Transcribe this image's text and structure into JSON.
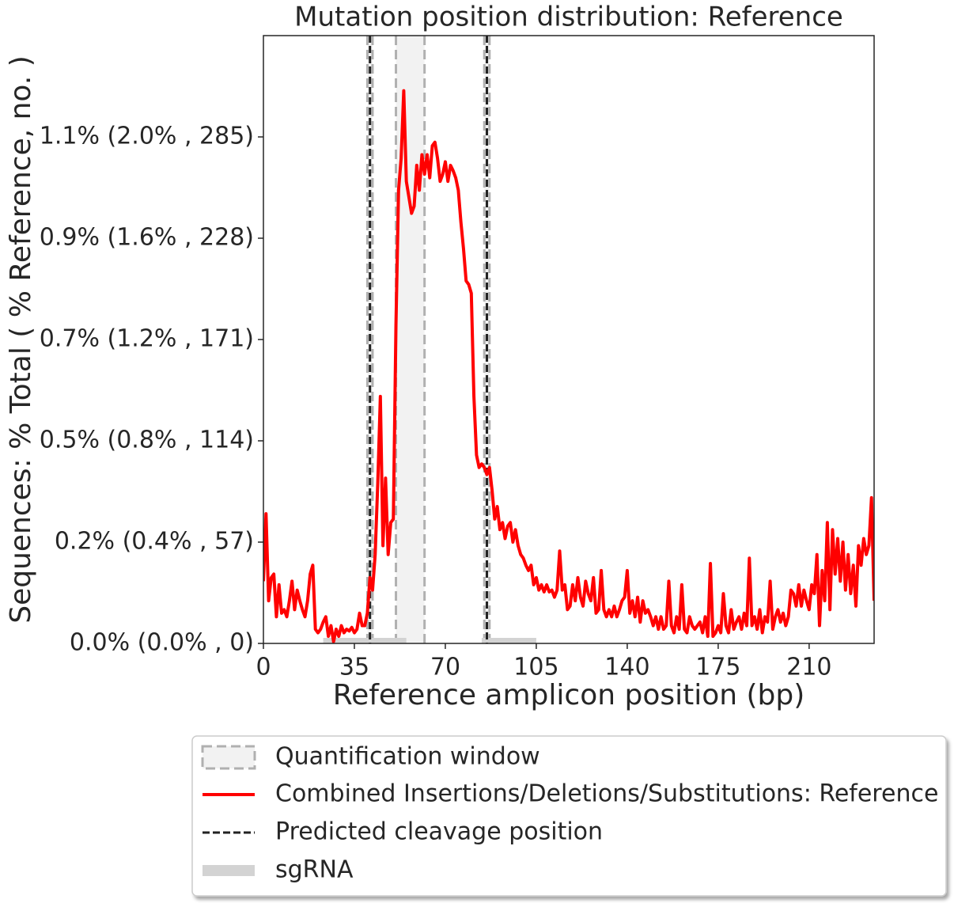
{
  "chart_data": {
    "type": "line",
    "title": "Mutation position distribution: Reference",
    "x_label": "Reference amplicon position (bp)",
    "y_label": "Sequences: % Total ( % Reference, no. )",
    "x": [
      0,
      1,
      2,
      3,
      4,
      5,
      6,
      7,
      8,
      9,
      10,
      11,
      12,
      13,
      14,
      15,
      16,
      17,
      18,
      19,
      20,
      21,
      22,
      23,
      24,
      25,
      26,
      27,
      28,
      29,
      30,
      31,
      32,
      33,
      34,
      35,
      36,
      37,
      38,
      39,
      40,
      41,
      42,
      43,
      44,
      45,
      46,
      47,
      48,
      49,
      50,
      51,
      52,
      53,
      54,
      55,
      56,
      57,
      58,
      59,
      60,
      61,
      62,
      63,
      64,
      65,
      66,
      67,
      68,
      69,
      70,
      71,
      72,
      73,
      74,
      75,
      76,
      77,
      78,
      79,
      80,
      81,
      82,
      83,
      84,
      85,
      86,
      87,
      88,
      89,
      90,
      91,
      92,
      93,
      94,
      95,
      96,
      97,
      98,
      99,
      100,
      101,
      102,
      103,
      104,
      105,
      106,
      107,
      108,
      109,
      110,
      111,
      112,
      113,
      114,
      115,
      116,
      117,
      118,
      119,
      120,
      121,
      122,
      123,
      124,
      125,
      126,
      127,
      128,
      129,
      130,
      131,
      132,
      133,
      134,
      135,
      136,
      137,
      138,
      139,
      140,
      141,
      142,
      143,
      144,
      145,
      146,
      147,
      148,
      149,
      150,
      151,
      152,
      153,
      154,
      155,
      156,
      157,
      158,
      159,
      160,
      161,
      162,
      163,
      164,
      165,
      166,
      167,
      168,
      169,
      170,
      171,
      172,
      173,
      174,
      175,
      176,
      177,
      178,
      179,
      180,
      181,
      182,
      183,
      184,
      185,
      186,
      187,
      188,
      189,
      190,
      191,
      192,
      193,
      194,
      195,
      196,
      197,
      198,
      199,
      200,
      201,
      202,
      203,
      204,
      205,
      206,
      207,
      208,
      209,
      210,
      211,
      212,
      213,
      214,
      215,
      216,
      217,
      218,
      219,
      220,
      221,
      222,
      223,
      224,
      225,
      226,
      227,
      228,
      229,
      230,
      231,
      232,
      233,
      234,
      235
    ],
    "series": [
      {
        "name": "Combined Insertions/Deletions/Substitutions: Reference",
        "color": "#ff0000",
        "values": [
          35,
          73,
          24,
          37,
          39,
          15,
          33,
          17,
          19,
          15,
          24,
          35,
          19,
          30,
          24,
          19,
          15,
          24,
          39,
          44,
          8,
          6,
          8,
          12,
          15,
          4,
          10,
          1,
          8,
          4,
          10,
          6,
          8,
          7,
          9,
          6,
          8,
          17,
          10,
          10,
          17,
          37,
          30,
          50,
          90,
          139,
          55,
          93,
          50,
          68,
          70,
          179,
          255,
          273,
          311,
          260,
          251,
          242,
          246,
          269,
          255,
          275,
          264,
          275,
          262,
          280,
          282,
          273,
          260,
          264,
          271,
          260,
          269,
          266,
          262,
          255,
          237,
          222,
          204,
          202,
          197,
          139,
          106,
          99,
          101,
          99,
          95,
          99,
          86,
          70,
          77,
          64,
          68,
          59,
          66,
          68,
          57,
          64,
          55,
          50,
          48,
          44,
          41,
          44,
          33,
          37,
          30,
          33,
          29,
          33,
          29,
          30,
          26,
          30,
          52,
          30,
          33,
          19,
          21,
          33,
          24,
          37,
          26,
          21,
          35,
          28,
          24,
          37,
          17,
          19,
          41,
          19,
          15,
          19,
          15,
          21,
          15,
          19,
          24,
          26,
          41,
          17,
          24,
          15,
          26,
          12,
          24,
          17,
          19,
          15,
          10,
          15,
          8,
          15,
          8,
          10,
          35,
          10,
          6,
          15,
          8,
          33,
          8,
          6,
          15,
          10,
          8,
          10,
          12,
          6,
          15,
          4,
          45,
          4,
          6,
          10,
          6,
          28,
          10,
          6,
          19,
          8,
          12,
          15,
          8,
          17,
          10,
          48,
          10,
          15,
          8,
          19,
          6,
          15,
          12,
          35,
          8,
          15,
          19,
          12,
          17,
          10,
          15,
          30,
          28,
          21,
          33,
          21,
          30,
          24,
          19,
          33,
          28,
          50,
          10,
          41,
          24,
          68,
          19,
          64,
          39,
          59,
          35,
          57,
          30,
          50,
          28,
          44,
          21,
          55,
          44,
          59,
          50,
          55,
          82,
          24
        ]
      }
    ],
    "xlim": [
      0,
      235
    ],
    "xticks": [
      0,
      35,
      70,
      105,
      140,
      175,
      210
    ],
    "ylim": [
      0,
      342
    ],
    "yticks": [
      {
        "value": 0,
        "label": "0.0% (0.0% , 0)"
      },
      {
        "value": 57,
        "label": "0.2% (0.4% , 57)"
      },
      {
        "value": 114,
        "label": "0.5% (0.8% , 114)"
      },
      {
        "value": 171,
        "label": "0.7% (1.2% , 171)"
      },
      {
        "value": 228,
        "label": "0.9% (1.6% , 228)"
      },
      {
        "value": 285,
        "label": "1.1% (2.0% , 285)"
      }
    ],
    "quantification_window": {
      "name": "Quantification window",
      "color": "#b0b0b0",
      "intervals": [
        [
          40,
          42
        ],
        [
          51,
          62
        ],
        [
          85,
          87
        ]
      ]
    },
    "cleavage": {
      "name": "Predicted cleavage position",
      "color": "#222222",
      "positions": [
        41,
        86
      ]
    },
    "sgrna": {
      "name": "sgRNA",
      "color": "#d3d3d3",
      "intervals": [
        [
          23,
          55
        ],
        [
          84,
          105
        ]
      ]
    }
  }
}
